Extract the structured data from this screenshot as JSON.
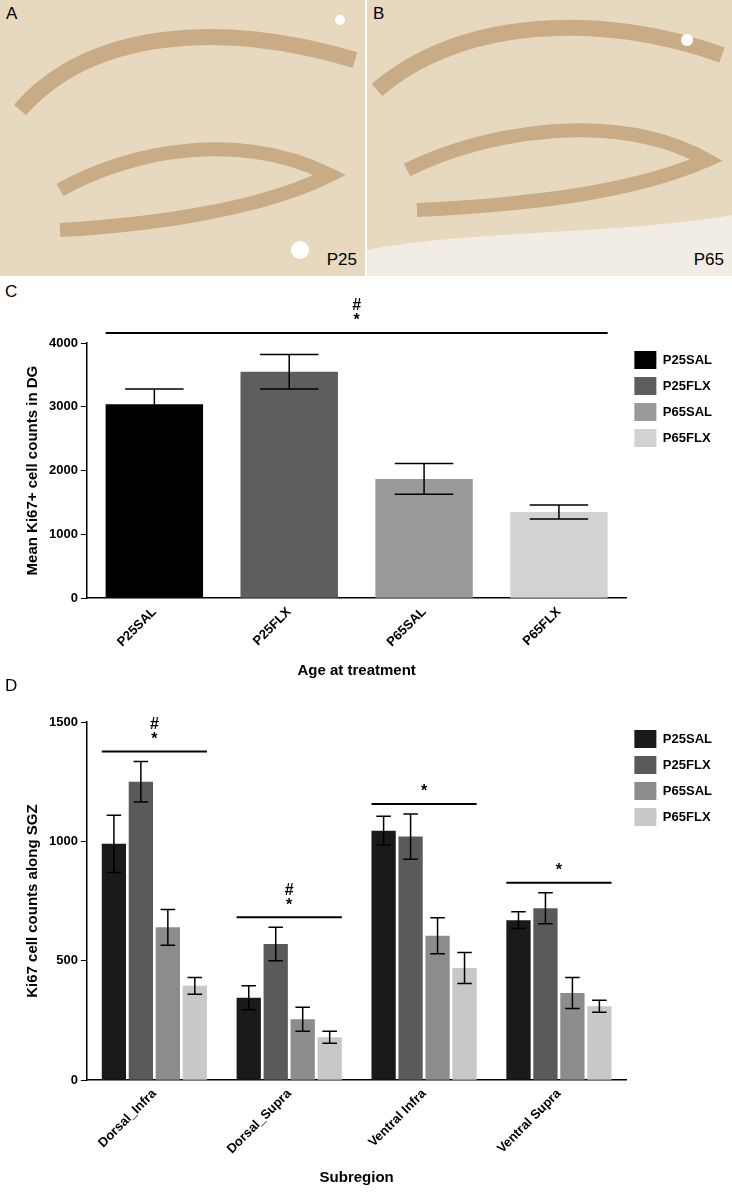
{
  "images": [
    {
      "panel": "A",
      "label": "P25"
    },
    {
      "panel": "B",
      "label": "P65"
    }
  ],
  "chart_data": [
    {
      "panel": "C",
      "type": "bar",
      "x_label": "Age at treatment",
      "y_label": "Mean Ki67+ cell counts in DG",
      "categories": [
        "P25SAL",
        "P25FLX",
        "P65SAL",
        "P65FLX"
      ],
      "values": [
        3040,
        3550,
        1870,
        1350
      ],
      "errors": [
        240,
        270,
        240,
        110
      ],
      "colors": [
        "#000000",
        "#5e5e5e",
        "#9a9a9a",
        "#d2d2d2"
      ],
      "ylim": [
        0,
        4000
      ],
      "yticks": [
        0,
        1000,
        2000,
        3000,
        4000
      ],
      "legend": "right",
      "significance": [
        {
          "from": "P25SAL",
          "to": "P65FLX",
          "marks": [
            "#",
            "*"
          ]
        }
      ]
    },
    {
      "panel": "D",
      "type": "bar",
      "x_label": "Subregion",
      "y_label": "Ki67 cell counts along SGZ",
      "categories": [
        "Dorsal_Infra",
        "Dorsal_Supra",
        "Ventral Infra",
        "Ventral Supra"
      ],
      "series": [
        {
          "name": "P25SAL",
          "color": "#1a1a1a",
          "values": [
            990,
            345,
            1045,
            670
          ],
          "errors": [
            120,
            50,
            60,
            35
          ]
        },
        {
          "name": "P25FLX",
          "color": "#5a5a5a",
          "values": [
            1250,
            570,
            1020,
            720
          ],
          "errors": [
            85,
            70,
            95,
            65
          ]
        },
        {
          "name": "P65SAL",
          "color": "#8c8c8c",
          "values": [
            640,
            255,
            605,
            365
          ],
          "errors": [
            75,
            50,
            75,
            65
          ]
        },
        {
          "name": "P65FLX",
          "color": "#c8c8c8",
          "values": [
            395,
            180,
            470,
            310
          ],
          "errors": [
            35,
            25,
            65,
            25
          ]
        }
      ],
      "ylim": [
        0,
        1500
      ],
      "yticks": [
        0,
        500,
        1000,
        1500
      ],
      "legend": "right",
      "significance": [
        {
          "category": "Dorsal_Infra",
          "marks": [
            "#",
            "*"
          ]
        },
        {
          "category": "Dorsal_Supra",
          "marks": [
            "#",
            "*"
          ]
        },
        {
          "category": "Ventral Infra",
          "marks": [
            "*"
          ]
        },
        {
          "category": "Ventral Supra",
          "marks": [
            "*"
          ]
        }
      ]
    }
  ]
}
